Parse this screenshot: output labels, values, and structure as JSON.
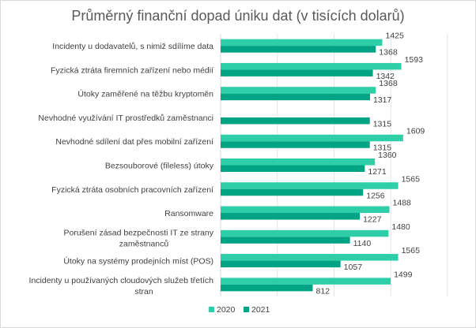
{
  "chart_data": {
    "type": "bar",
    "orientation": "horizontal",
    "title": "Průměrný finanční dopad úniku dat  (v tisících dolarů)",
    "xlabel": "",
    "ylabel": "",
    "xlim": [
      0,
      2000
    ],
    "grid": true,
    "legend_position": "bottom",
    "categories": [
      "Incidenty u dodavatelů, s nimiž sdílíme data",
      "Fyzická ztráta firemních zařízení nebo médií",
      "Útoky zaměřené na těžbu kryptoměn",
      "Nevhodné využívání IT prostředků zaměstnanci",
      "Nevhodné sdílení dat přes mobilní zařízení",
      "Bezsouborové (fileless) útoky",
      "Fyzická ztráta osobních pracovních zařízení",
      "Ransomware",
      "Porušení zásad bezpečnosti IT ze strany zaměstnanců",
      "Útoky na systémy prodejních míst (POS)",
      "Incidenty u používaných cloudových služeb třetích stran"
    ],
    "series": [
      {
        "name": "2020",
        "color": "#2ecfa8",
        "values": [
          1425,
          1593,
          1368,
          null,
          1609,
          1360,
          1565,
          1488,
          1480,
          1565,
          1499
        ]
      },
      {
        "name": "2021",
        "color": "#00a383",
        "values": [
          1368,
          1342,
          1317,
          1315,
          1315,
          1271,
          1256,
          1227,
          1140,
          1057,
          812
        ]
      }
    ]
  }
}
